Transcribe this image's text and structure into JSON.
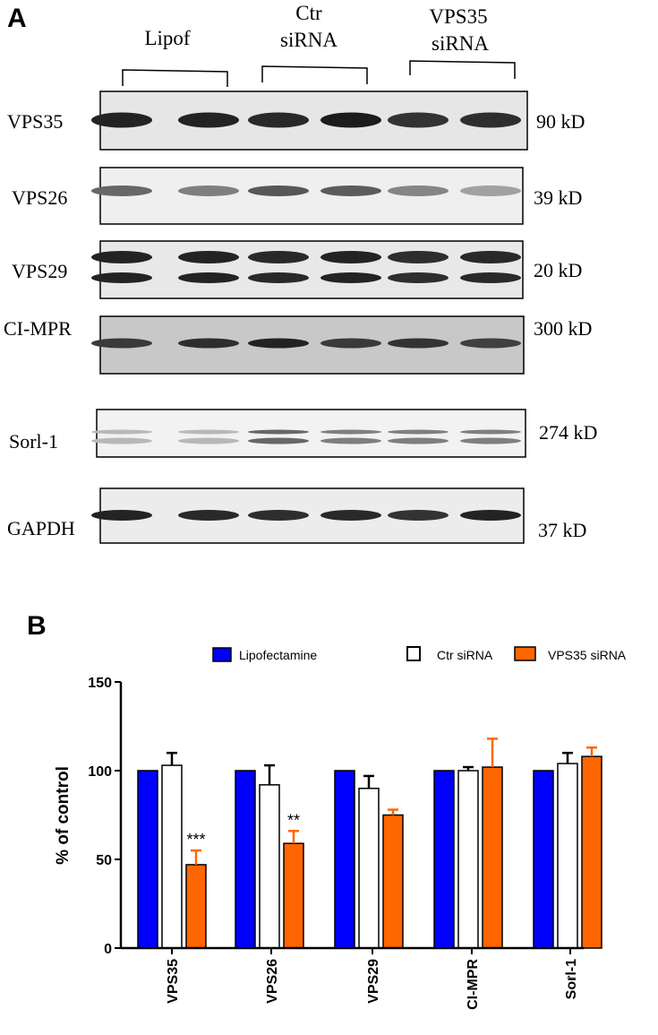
{
  "panels": [
    {
      "label": "A"
    },
    {
      "label": "B"
    }
  ],
  "blot": {
    "groups": [
      {
        "label_lines": [
          "Lipof"
        ]
      },
      {
        "label_lines": [
          "Ctr",
          "siRNA"
        ]
      },
      {
        "label_lines": [
          "VPS35",
          "siRNA"
        ]
      }
    ],
    "rows": [
      {
        "protein": "VPS35",
        "size": "90 kD",
        "background": "#e6e6e6",
        "bands": [
          0.85,
          0.85,
          0.82,
          0.88,
          0.78,
          0.8
        ],
        "doublet": false
      },
      {
        "protein": "VPS26",
        "size": "39 kD",
        "background": "#efefef",
        "bands": [
          0.55,
          0.45,
          0.62,
          0.6,
          0.42,
          0.3
        ],
        "doublet": false
      },
      {
        "protein": "VPS29",
        "size": "20 kD",
        "background": "#e8e8e8",
        "bands": [
          0.85,
          0.85,
          0.82,
          0.85,
          0.8,
          0.82
        ],
        "doublet": true
      },
      {
        "protein": "CI-MPR",
        "size": "300 kD",
        "background": "#c8c8c8",
        "bands": [
          0.75,
          0.8,
          0.85,
          0.75,
          0.78,
          0.72
        ],
        "doublet": false
      },
      {
        "protein": "Sorl-1",
        "size": "274 kD",
        "background": "#f2f2f2",
        "bands": [
          0.2,
          0.2,
          0.55,
          0.45,
          0.45,
          0.45
        ],
        "doublet": true
      },
      {
        "protein": "GAPDH",
        "size": "37 kD",
        "background": "#ececec",
        "bands": [
          0.85,
          0.82,
          0.8,
          0.82,
          0.78,
          0.85
        ],
        "doublet": false
      }
    ]
  },
  "chart_data": {
    "type": "bar",
    "ylabel": "% of control",
    "ylim": [
      0,
      150
    ],
    "yticks": [
      0,
      50,
      100,
      150
    ],
    "categories": [
      "VPS35",
      "VPS26",
      "VPS29",
      "CI-MPR",
      "Sorl-1"
    ],
    "legend_position": "top",
    "series": [
      {
        "name": "Lipofectamine",
        "color": "#0000ff",
        "fill": "#0000ff",
        "values": [
          100,
          100,
          100,
          100,
          100
        ],
        "errors": [
          0,
          0,
          0,
          0,
          0
        ]
      },
      {
        "name": "Ctr siRNA",
        "color": "#000000",
        "fill": "#ffffff",
        "values": [
          103,
          92,
          90,
          100,
          104
        ],
        "errors": [
          7,
          11,
          7,
          2,
          6
        ]
      },
      {
        "name": "VPS35 siRNA",
        "color": "#ff6600",
        "fill": "#ff6600",
        "values": [
          47,
          59,
          75,
          102,
          108
        ],
        "errors": [
          8,
          7,
          3,
          16,
          5
        ]
      }
    ],
    "annotations": [
      {
        "category": "VPS35",
        "series": "VPS35 siRNA",
        "text": "***"
      },
      {
        "category": "VPS26",
        "series": "VPS35 siRNA",
        "text": "**"
      }
    ]
  }
}
